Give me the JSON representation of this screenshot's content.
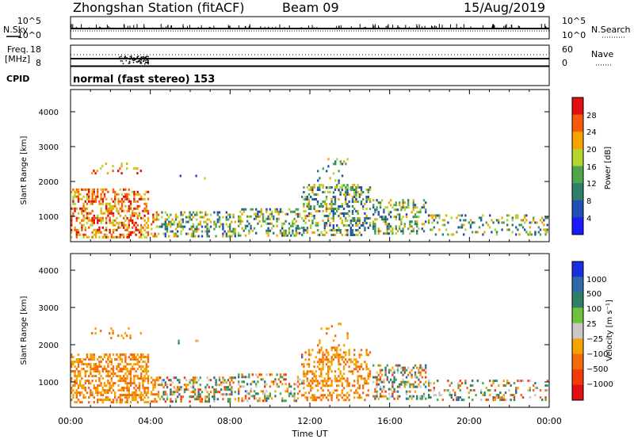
{
  "header": {
    "station": "Zhongshan Station (fitACF)",
    "beam": "Beam 09",
    "date": "15/Aug/2019"
  },
  "params_panel": {
    "nsky_label": "N.Sky",
    "nsky_ticks": [
      "10^5",
      "10^0"
    ],
    "nsearch_label": "N.Search",
    "nsearch_ticks": [
      "10^5",
      "10^0"
    ],
    "freq_label": "Freq.",
    "freq_unit": "[MHz]",
    "freq_ticks": [
      "18",
      "8"
    ],
    "nave_label": "Nave",
    "nave_ticks": [
      "60",
      "0"
    ],
    "cpid_label": "CPID",
    "cpid_text": "normal (fast stereo) 153"
  },
  "chart_data": [
    {
      "type": "heatmap",
      "panel": "power",
      "ylabel": "Slant Range [km]",
      "colorbar_label": "Power [dB]",
      "colorbar_ticks": [
        "28",
        "24",
        "20",
        "16",
        "12",
        "8",
        "4"
      ],
      "colorbar_colors": [
        "#e01010",
        "#f55b0a",
        "#f5a300",
        "#b5d42e",
        "#4ea64b",
        "#2e7f68",
        "#1f4fb0",
        "#1a1aff"
      ],
      "ylim": [
        180,
        4500
      ],
      "y_ticks": [
        "4000",
        "3000",
        "2000",
        "1000"
      ],
      "x_ticks": [
        "00:00",
        "04:00",
        "08:00",
        "12:00",
        "16:00",
        "20:00",
        "00:00"
      ],
      "xlabel": ""
    },
    {
      "type": "heatmap",
      "panel": "velocity",
      "ylabel": "Slant Range [km]",
      "colorbar_label": "Velocity [m s⁻¹]",
      "colorbar_ticks": [
        "1000",
        "500",
        "100",
        "25",
        "−25",
        "−100",
        "−500",
        "−1000"
      ],
      "colorbar_colors": [
        "#1a2ee0",
        "#2f6aa8",
        "#2e7f68",
        "#6fc23d",
        "#c8c8c8",
        "#f5a300",
        "#f56a0a",
        "#f53a0a",
        "#e01010"
      ],
      "ylim": [
        180,
        4500
      ],
      "y_ticks": [
        "4000",
        "3000",
        "2000",
        "1000"
      ],
      "x_ticks": [
        "00:00",
        "04:00",
        "08:00",
        "12:00",
        "16:00",
        "20:00",
        "00:00"
      ],
      "xlabel": "Time UT"
    }
  ]
}
